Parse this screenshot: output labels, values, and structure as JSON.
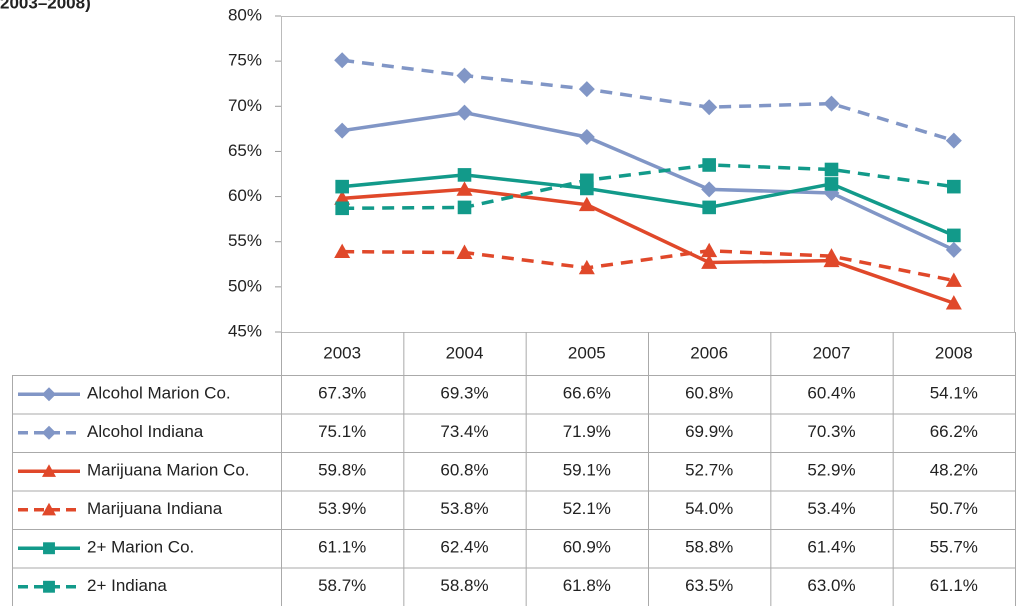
{
  "chart_data": {
    "type": "line",
    "title": "2003–2008)",
    "categories": [
      "2003",
      "2004",
      "2005",
      "2006",
      "2007",
      "2008"
    ],
    "ylim": [
      45,
      80
    ],
    "yticks": [
      {
        "value": 45,
        "label": "45%"
      },
      {
        "value": 50,
        "label": "50%"
      },
      {
        "value": 55,
        "label": "55%"
      },
      {
        "value": 60,
        "label": "60%"
      },
      {
        "value": 65,
        "label": "65%"
      },
      {
        "value": 70,
        "label": "70%"
      },
      {
        "value": 75,
        "label": "75%"
      },
      {
        "value": 80,
        "label": "80%"
      }
    ],
    "grid": false,
    "series": [
      {
        "name": "Alcohol Marion Co.",
        "color": "#8196c6",
        "marker": "diamond",
        "dashed": false,
        "values": [
          67.3,
          69.3,
          66.6,
          60.8,
          60.4,
          54.1
        ],
        "value_labels": [
          "67.3%",
          "69.3%",
          "66.6%",
          "60.8%",
          "60.4%",
          "54.1%"
        ]
      },
      {
        "name": "Alcohol Indiana",
        "color": "#8196c6",
        "marker": "diamond",
        "dashed": true,
        "values": [
          75.1,
          73.4,
          71.9,
          69.9,
          70.3,
          66.2
        ],
        "value_labels": [
          "75.1%",
          "73.4%",
          "71.9%",
          "69.9%",
          "70.3%",
          "66.2%"
        ]
      },
      {
        "name": "Marijuana Marion Co.",
        "color": "#e0482a",
        "marker": "triangle",
        "dashed": false,
        "values": [
          59.8,
          60.8,
          59.1,
          52.7,
          52.9,
          48.2
        ],
        "value_labels": [
          "59.8%",
          "60.8%",
          "59.1%",
          "52.7%",
          "52.9%",
          "48.2%"
        ]
      },
      {
        "name": "Marijuana Indiana",
        "color": "#e0482a",
        "marker": "triangle",
        "dashed": true,
        "values": [
          53.9,
          53.8,
          52.1,
          54.0,
          53.4,
          50.7
        ],
        "value_labels": [
          "53.9%",
          "53.8%",
          "52.1%",
          "54.0%",
          "53.4%",
          "50.7%"
        ]
      },
      {
        "name": "2+ Marion Co.",
        "color": "#129a8a",
        "marker": "square",
        "dashed": false,
        "values": [
          61.1,
          62.4,
          60.9,
          58.8,
          61.4,
          55.7
        ],
        "value_labels": [
          "61.1%",
          "62.4%",
          "60.9%",
          "58.8%",
          "61.4%",
          "55.7%"
        ]
      },
      {
        "name": "2+ Indiana",
        "color": "#129a8a",
        "marker": "square",
        "dashed": true,
        "values": [
          58.7,
          58.8,
          61.8,
          63.5,
          63.0,
          61.1
        ],
        "value_labels": [
          "58.7%",
          "58.8%",
          "61.8%",
          "63.5%",
          "63.0%",
          "61.1%"
        ]
      }
    ]
  }
}
